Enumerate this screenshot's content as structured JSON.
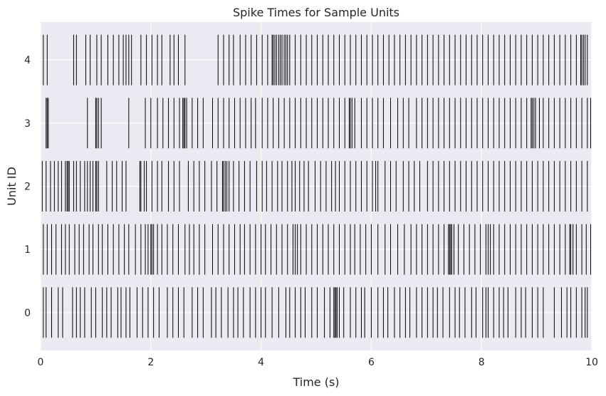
{
  "chart_data": {
    "type": "raster",
    "title": "Spike Times for Sample Units",
    "xlabel": "Time (s)",
    "ylabel": "Unit ID",
    "xlim": [
      0,
      10
    ],
    "ylim": [
      -0.6,
      4.6
    ],
    "xticks": [
      0,
      2,
      4,
      6,
      8,
      10
    ],
    "yticks": [
      0,
      1,
      2,
      3,
      4
    ],
    "grid": true,
    "background_color": "#eaeaf2",
    "spike_color": "#000000",
    "units": [
      {
        "id": 0,
        "spikes": [
          0.05,
          0.1,
          0.2,
          0.32,
          0.4,
          0.58,
          0.65,
          0.72,
          0.8,
          0.92,
          1.0,
          1.12,
          1.2,
          1.28,
          1.4,
          1.46,
          1.55,
          1.62,
          1.75,
          1.85,
          1.95,
          2.05,
          2.15,
          2.3,
          2.4,
          2.5,
          2.6,
          2.75,
          2.85,
          2.95,
          3.1,
          3.18,
          3.28,
          3.4,
          3.5,
          3.58,
          3.68,
          3.8,
          3.9,
          4.0,
          4.08,
          4.2,
          4.32,
          4.45,
          4.52,
          4.62,
          4.72,
          4.8,
          4.92,
          5.02,
          5.15,
          5.25,
          5.32,
          5.34,
          5.36,
          5.38,
          5.42,
          5.5,
          5.62,
          5.72,
          5.82,
          5.88,
          6.0,
          6.12,
          6.22,
          6.3,
          6.42,
          6.52,
          6.62,
          6.7,
          6.82,
          6.92,
          7.02,
          7.12,
          7.2,
          7.3,
          7.42,
          7.52,
          7.6,
          7.7,
          7.82,
          7.9,
          8.02,
          8.08,
          8.12,
          8.22,
          8.32,
          8.4,
          8.48,
          8.62,
          8.72,
          8.8,
          8.92,
          9.02,
          9.12,
          9.32,
          9.45,
          9.55,
          9.62,
          9.72,
          9.82,
          9.88,
          9.92
        ]
      },
      {
        "id": 1,
        "spikes": [
          0.05,
          0.12,
          0.2,
          0.28,
          0.38,
          0.45,
          0.52,
          0.62,
          0.7,
          0.78,
          0.88,
          0.95,
          1.05,
          1.12,
          1.22,
          1.32,
          1.42,
          1.52,
          1.6,
          1.72,
          1.82,
          1.9,
          1.95,
          2.0,
          2.02,
          2.05,
          2.12,
          2.2,
          2.3,
          2.4,
          2.5,
          2.62,
          2.7,
          2.78,
          2.88,
          2.98,
          3.12,
          3.22,
          3.32,
          3.42,
          3.52,
          3.62,
          3.7,
          3.8,
          3.9,
          4.0,
          4.08,
          4.18,
          4.28,
          4.38,
          4.48,
          4.58,
          4.62,
          4.66,
          4.72,
          4.82,
          4.92,
          5.02,
          5.12,
          5.22,
          5.32,
          5.42,
          5.52,
          5.62,
          5.7,
          5.8,
          5.9,
          6.0,
          6.12,
          6.25,
          6.35,
          6.48,
          6.6,
          6.72,
          6.82,
          6.92,
          7.02,
          7.12,
          7.22,
          7.32,
          7.4,
          7.42,
          7.44,
          7.46,
          7.5,
          7.58,
          7.68,
          7.78,
          7.88,
          7.98,
          8.08,
          8.12,
          8.16,
          8.22,
          8.32,
          8.42,
          8.52,
          8.62,
          8.72,
          8.82,
          8.92,
          9.02,
          9.12,
          9.22,
          9.32,
          9.42,
          9.52,
          9.6,
          9.62,
          9.66,
          9.72,
          9.82,
          9.9,
          9.98
        ]
      },
      {
        "id": 2,
        "spikes": [
          0.03,
          0.1,
          0.18,
          0.25,
          0.32,
          0.38,
          0.45,
          0.48,
          0.5,
          0.52,
          0.6,
          0.65,
          0.72,
          0.8,
          0.85,
          0.9,
          0.95,
          1.0,
          1.02,
          1.05,
          1.2,
          1.3,
          1.38,
          1.48,
          1.55,
          1.8,
          1.82,
          1.88,
          1.92,
          2.02,
          2.12,
          2.2,
          2.32,
          2.42,
          2.52,
          2.68,
          2.78,
          2.88,
          2.98,
          3.1,
          3.2,
          3.3,
          3.32,
          3.35,
          3.38,
          3.42,
          3.5,
          3.6,
          3.7,
          3.8,
          3.92,
          4.02,
          4.1,
          4.2,
          4.3,
          4.38,
          4.48,
          4.56,
          4.62,
          4.7,
          4.78,
          4.86,
          4.98,
          5.08,
          5.18,
          5.28,
          5.35,
          5.42,
          5.52,
          5.62,
          5.72,
          5.82,
          5.92,
          6.02,
          6.08,
          6.12,
          6.25,
          6.35,
          6.45,
          6.58,
          6.68,
          6.78,
          6.88,
          7.02,
          7.12,
          7.22,
          7.32,
          7.42,
          7.52,
          7.62,
          7.72,
          7.82,
          7.92,
          8.02,
          8.12,
          8.22,
          8.32,
          8.42,
          8.52,
          8.62,
          8.72,
          8.82,
          8.92,
          9.02,
          9.12,
          9.22,
          9.32,
          9.42,
          9.52,
          9.62,
          9.72,
          9.82,
          9.92
        ]
      },
      {
        "id": 3,
        "spikes": [
          0.1,
          0.12,
          0.14,
          0.85,
          1.0,
          1.02,
          1.05,
          1.1,
          1.6,
          1.9,
          2.0,
          2.12,
          2.22,
          2.32,
          2.42,
          2.52,
          2.58,
          2.6,
          2.62,
          2.65,
          2.75,
          2.85,
          2.95,
          3.12,
          3.22,
          3.32,
          3.42,
          3.52,
          3.62,
          3.72,
          3.82,
          3.9,
          4.02,
          4.12,
          4.22,
          4.32,
          4.42,
          4.52,
          4.62,
          4.72,
          4.82,
          4.92,
          5.02,
          5.12,
          5.22,
          5.32,
          5.42,
          5.52,
          5.6,
          5.62,
          5.65,
          5.7,
          5.82,
          5.92,
          6.02,
          6.12,
          6.22,
          6.35,
          6.48,
          6.58,
          6.68,
          6.82,
          6.92,
          7.02,
          7.12,
          7.22,
          7.32,
          7.42,
          7.52,
          7.62,
          7.72,
          7.82,
          7.92,
          8.02,
          8.12,
          8.22,
          8.32,
          8.42,
          8.52,
          8.62,
          8.72,
          8.82,
          8.9,
          8.92,
          8.95,
          8.98,
          9.05,
          9.12,
          9.22,
          9.32,
          9.42,
          9.52,
          9.62,
          9.72,
          9.82,
          9.92,
          9.98
        ]
      },
      {
        "id": 4,
        "spikes": [
          0.05,
          0.12,
          0.6,
          0.65,
          0.82,
          0.9,
          1.02,
          1.1,
          1.22,
          1.32,
          1.42,
          1.5,
          1.55,
          1.6,
          1.65,
          1.82,
          1.92,
          2.02,
          2.12,
          2.2,
          2.35,
          2.42,
          2.5,
          2.62,
          3.22,
          3.32,
          3.42,
          3.5,
          3.62,
          3.72,
          3.82,
          3.92,
          4.02,
          4.12,
          4.2,
          4.22,
          4.25,
          4.28,
          4.32,
          4.35,
          4.38,
          4.42,
          4.45,
          4.48,
          4.52,
          4.62,
          4.72,
          4.82,
          4.92,
          5.02,
          5.12,
          5.22,
          5.32,
          5.42,
          5.52,
          5.62,
          5.72,
          5.82,
          5.92,
          6.02,
          6.12,
          6.22,
          6.32,
          6.42,
          6.52,
          6.62,
          6.72,
          6.82,
          6.92,
          7.02,
          7.12,
          7.22,
          7.32,
          7.42,
          7.52,
          7.62,
          7.72,
          7.82,
          7.92,
          8.02,
          8.12,
          8.22,
          8.32,
          8.42,
          8.52,
          8.62,
          8.72,
          8.82,
          8.92,
          9.02,
          9.12,
          9.22,
          9.32,
          9.42,
          9.52,
          9.62,
          9.72,
          9.8,
          9.82,
          9.85,
          9.88,
          9.92
        ]
      }
    ]
  }
}
